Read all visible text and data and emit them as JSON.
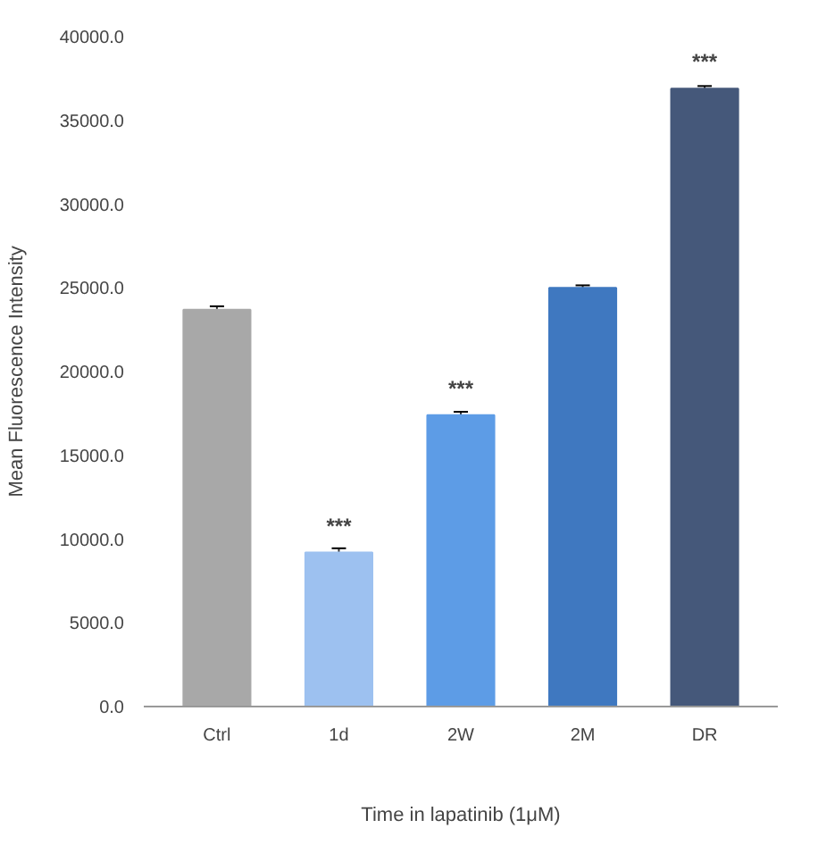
{
  "chart_data": {
    "type": "bar",
    "xlabel": "Time in lapatinib (1μM)",
    "ylabel": "Mean Fluorescence Intensity",
    "categories": [
      "Ctrl",
      "1d",
      "2W",
      "2M",
      "DR"
    ],
    "values": [
      23700,
      9200,
      17400,
      25000,
      36900
    ],
    "errors": [
      200,
      250,
      200,
      150,
      150
    ],
    "colors": [
      "#a8a8a8",
      "#9dc1f0",
      "#5d9ce6",
      "#3f78c0",
      "#45587a"
    ],
    "ylim": [
      0,
      40000
    ],
    "yticks": [
      {
        "value": 0,
        "label": "0.0"
      },
      {
        "value": 5000,
        "label": "5000.0"
      },
      {
        "value": 10000,
        "label": "10000.0"
      },
      {
        "value": 15000,
        "label": "15000.0"
      },
      {
        "value": 20000,
        "label": "20000.0"
      },
      {
        "value": 25000,
        "label": "25000.0"
      },
      {
        "value": 30000,
        "label": "30000.0"
      },
      {
        "value": 35000,
        "label": "35000.0"
      },
      {
        "value": 40000,
        "label": "40000.0"
      }
    ],
    "annotations": [
      {
        "text": "***",
        "x": "1d",
        "y": 9200
      },
      {
        "text": "***",
        "x": "2W",
        "y": 17400
      },
      {
        "text": "***",
        "x": "DR",
        "y": 36900
      }
    ],
    "grid": false
  }
}
